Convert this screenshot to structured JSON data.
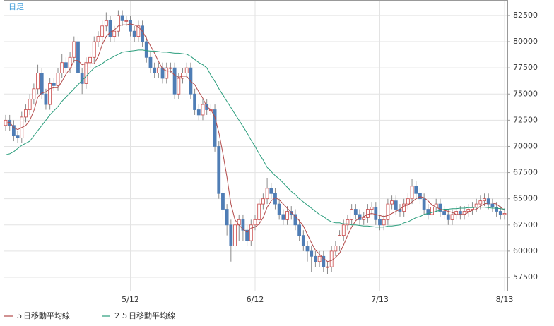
{
  "chart_data": {
    "type": "candlestick",
    "title": "日足",
    "categories": [
      null,
      null,
      null,
      null,
      null,
      null,
      null,
      null,
      null,
      null,
      null,
      null,
      null,
      null,
      null,
      null,
      null,
      null,
      null,
      null,
      null,
      null,
      null,
      null,
      null,
      null,
      null,
      null,
      null,
      null,
      null,
      "5/12",
      null,
      null,
      null,
      null,
      null,
      null,
      null,
      null,
      null,
      null,
      null,
      null,
      null,
      null,
      null,
      null,
      null,
      null,
      null,
      null,
      null,
      null,
      null,
      null,
      null,
      null,
      null,
      null,
      null,
      null,
      "6/12",
      null,
      null,
      null,
      null,
      null,
      null,
      null,
      null,
      null,
      null,
      null,
      null,
      null,
      null,
      null,
      null,
      null,
      null,
      null,
      null,
      null,
      null,
      null,
      null,
      null,
      null,
      null,
      null,
      null,
      null,
      "7/13",
      null,
      null,
      null,
      null,
      null,
      null,
      null,
      null,
      null,
      null,
      null,
      null,
      null,
      null,
      null,
      null,
      null,
      null,
      null,
      null,
      null,
      null,
      null,
      null,
      null,
      null,
      null,
      null,
      null,
      null,
      "8/13"
    ],
    "open": [
      72000,
      72500,
      72000,
      71000,
      70800,
      72800,
      73500,
      74500,
      75500,
      77000,
      75000,
      74000,
      76000,
      75800,
      77000,
      78000,
      77500,
      78500,
      80000,
      77000,
      76000,
      78000,
      78500,
      80000,
      80500,
      81500,
      82000,
      80500,
      81000,
      82500,
      82000,
      82000,
      81000,
      80500,
      81500,
      80000,
      78500,
      77500,
      77000,
      77500,
      76500,
      77500,
      77500,
      75000,
      76500,
      77000,
      77500,
      75000,
      73500,
      73000,
      74000,
      73500,
      73500,
      70000,
      65500,
      64000,
      62500,
      60500,
      62500,
      63000,
      62000,
      61000,
      62500,
      63000,
      64500,
      65000,
      66000,
      65500,
      64500,
      63500,
      63000,
      63800,
      63500,
      62500,
      61500,
      60500,
      60000,
      59500,
      59000,
      59500,
      58500,
      58500,
      60000,
      60500,
      61500,
      62500,
      63000,
      64000,
      63500,
      63000,
      63200,
      64000,
      64200,
      63000,
      62500,
      63000,
      64500,
      64800,
      64000,
      63800,
      64500,
      65000,
      66200,
      65500,
      65000,
      64000,
      63500,
      64200,
      64500,
      63800,
      63500,
      63000,
      63500,
      63800,
      63500,
      63800,
      64000,
      64200,
      64500,
      64800,
      65000,
      64500,
      64200,
      63800,
      63500
    ],
    "high": [
      73000,
      73000,
      72500,
      71500,
      73300,
      74000,
      75000,
      76000,
      77800,
      77500,
      75500,
      76500,
      76500,
      77500,
      78800,
      78500,
      79000,
      80500,
      80500,
      77500,
      78500,
      79000,
      80500,
      81000,
      82000,
      82800,
      82500,
      81500,
      83000,
      83000,
      82500,
      82500,
      81500,
      82000,
      82000,
      80500,
      79000,
      78000,
      78000,
      78000,
      78000,
      78000,
      78000,
      77000,
      77500,
      78000,
      78000,
      75500,
      74000,
      74500,
      74500,
      74000,
      74000,
      70500,
      66000,
      64500,
      63000,
      63000,
      63500,
      63500,
      62500,
      63000,
      63500,
      65000,
      65500,
      67000,
      66500,
      66000,
      65000,
      64000,
      64300,
      64300,
      64000,
      63000,
      62000,
      61000,
      60500,
      60000,
      60000,
      60000,
      59000,
      60500,
      61000,
      62000,
      63000,
      63500,
      64500,
      64500,
      64000,
      63700,
      64500,
      64700,
      64700,
      63500,
      63500,
      65000,
      65300,
      65300,
      64500,
      65000,
      65500,
      66900,
      66700,
      66000,
      65500,
      64500,
      64700,
      65000,
      65000,
      64300,
      64000,
      64000,
      64300,
      64300,
      64300,
      64500,
      64700,
      65000,
      65300,
      65500,
      65500,
      65000,
      64700,
      64300,
      64100
    ],
    "low": [
      71500,
      71500,
      70500,
      70300,
      70300,
      72300,
      73000,
      74000,
      75000,
      74500,
      73500,
      73500,
      75300,
      75300,
      76500,
      77000,
      77000,
      78000,
      76500,
      75000,
      75500,
      77500,
      78000,
      79500,
      80000,
      81000,
      80000,
      80000,
      80500,
      81500,
      81500,
      80500,
      80000,
      80000,
      79500,
      78000,
      77000,
      76500,
      76500,
      76000,
      76000,
      77000,
      74500,
      74500,
      76000,
      76500,
      74500,
      73000,
      72500,
      72500,
      73000,
      73000,
      69500,
      65000,
      63000,
      61500,
      59000,
      60000,
      61000,
      61000,
      60500,
      60500,
      62000,
      62500,
      64000,
      64500,
      65000,
      64000,
      63000,
      62500,
      62500,
      63000,
      62000,
      61000,
      60000,
      59000,
      58000,
      58500,
      58500,
      58000,
      57800,
      58000,
      59500,
      60000,
      61000,
      62000,
      62500,
      63000,
      62500,
      62500,
      62700,
      63500,
      62500,
      62000,
      62000,
      62500,
      64000,
      63500,
      63300,
      63300,
      64000,
      64500,
      65000,
      64500,
      63500,
      63000,
      63000,
      63700,
      63300,
      63000,
      62500,
      62500,
      63000,
      63000,
      63000,
      63300,
      63500,
      63700,
      64000,
      64300,
      64000,
      63700,
      63300,
      63000,
      63000
    ],
    "close": [
      72500,
      72000,
      71000,
      70800,
      72800,
      73500,
      74500,
      75500,
      77000,
      75000,
      74000,
      76000,
      75800,
      77000,
      78000,
      77500,
      78500,
      80000,
      77000,
      76000,
      78000,
      78500,
      80000,
      80500,
      81500,
      82000,
      80500,
      81000,
      82500,
      82000,
      82000,
      81000,
      80500,
      81500,
      80000,
      78500,
      77500,
      77000,
      77500,
      76500,
      77500,
      77500,
      75000,
      76500,
      77000,
      77500,
      75000,
      73500,
      73000,
      74000,
      73500,
      73500,
      70000,
      65500,
      64000,
      62500,
      60500,
      62500,
      63000,
      62000,
      61000,
      62500,
      63000,
      64500,
      65000,
      66000,
      65500,
      64500,
      63500,
      63000,
      63800,
      63500,
      62500,
      61500,
      60500,
      60000,
      59500,
      59000,
      59500,
      58500,
      58500,
      60000,
      60500,
      61500,
      62500,
      63000,
      64000,
      63500,
      63000,
      63200,
      64000,
      64200,
      63000,
      62500,
      63000,
      64500,
      64800,
      64000,
      63800,
      64500,
      65000,
      66200,
      65500,
      65000,
      64000,
      63500,
      64200,
      64500,
      63800,
      63500,
      63000,
      63500,
      63800,
      63500,
      63800,
      64000,
      64200,
      64500,
      64800,
      65000,
      64500,
      64200,
      63800,
      63500,
      63600
    ],
    "up_color": "#c84848",
    "down_color": "#4f7db5",
    "wick_color": "#8a8a8a",
    "moving_averages": [
      {
        "name": "５日移動平均線",
        "color": "#b24a4a",
        "values": [
          72200,
          72300,
          71800,
          71600,
          71800,
          72000,
          72500,
          73400,
          74700,
          75100,
          75200,
          75500,
          75600,
          75600,
          76200,
          76900,
          77400,
          78200,
          78200,
          77800,
          77900,
          77900,
          77900,
          78600,
          79700,
          80500,
          80900,
          81100,
          81500,
          81600,
          81600,
          81700,
          81600,
          81400,
          81000,
          80300,
          79600,
          78900,
          78100,
          77400,
          77200,
          77200,
          76800,
          76600,
          76700,
          76700,
          76200,
          75900,
          75200,
          74600,
          73800,
          73500,
          72800,
          71300,
          69300,
          67100,
          64500,
          63000,
          62500,
          62100,
          61800,
          62200,
          62300,
          62600,
          63200,
          64200,
          64800,
          65100,
          64900,
          64500,
          64100,
          63700,
          63300,
          62900,
          62400,
          61600,
          60800,
          60100,
          59700,
          59300,
          59000,
          59100,
          59400,
          59800,
          60600,
          61500,
          62300,
          62900,
          63200,
          63300,
          63500,
          63600,
          63500,
          63400,
          63300,
          63400,
          63600,
          63800,
          64000,
          64300,
          64400,
          64700,
          65000,
          65200,
          65100,
          64800,
          64400,
          64200,
          64000,
          63900,
          63800,
          63700,
          63500,
          63500,
          63500,
          63700,
          63900,
          64000,
          64300,
          64500,
          64600,
          64600,
          64500,
          64200,
          63900
        ]
      },
      {
        "name": "２５日移動平均線",
        "color": "#2a9d7c",
        "values": [
          69200,
          69300,
          69500,
          69800,
          70100,
          70300,
          70500,
          71000,
          71500,
          72000,
          72500,
          73000,
          73400,
          73800,
          74300,
          74700,
          75100,
          75500,
          75900,
          76300,
          76700,
          77100,
          77500,
          77700,
          77900,
          78200,
          78400,
          78600,
          78800,
          79000,
          79050,
          79100,
          79150,
          79200,
          79200,
          79150,
          79100,
          79100,
          79050,
          79000,
          79000,
          78950,
          78900,
          78900,
          78850,
          78800,
          78600,
          78300,
          78000,
          77800,
          77500,
          76800,
          76200,
          75500,
          74900,
          74300,
          73700,
          73100,
          72500,
          71900,
          71300,
          70600,
          70000,
          69300,
          68700,
          68000,
          67600,
          67200,
          66900,
          66500,
          66100,
          65700,
          65400,
          65000,
          64700,
          64400,
          64100,
          63800,
          63500,
          63300,
          63000,
          62800,
          62700,
          62700,
          62600,
          62600,
          62500,
          62500,
          62450,
          62400,
          62400,
          62350,
          62300,
          62300,
          62300,
          62400,
          62400,
          62450,
          62500,
          62700,
          62800,
          63000,
          63200,
          63300,
          63500,
          63600,
          63700,
          63800,
          63900,
          64000,
          64000,
          64050,
          64050,
          64100,
          64100,
          64150,
          64150,
          64200,
          64200,
          64200,
          64150,
          64100,
          64100,
          64050,
          64000
        ]
      }
    ],
    "ylim": [
      56220,
      83910
    ],
    "yticks": [
      57500,
      60000,
      62500,
      65000,
      67500,
      70000,
      72500,
      75000,
      77500,
      80000,
      82500
    ],
    "grid": true
  }
}
